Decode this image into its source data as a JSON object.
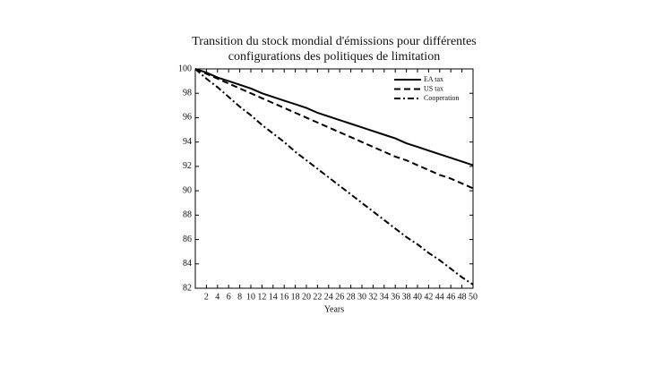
{
  "chart_data": {
    "type": "line",
    "title": [
      "Transition du stock mondial d'émissions pour différentes",
      "configurations des politiques de limitation"
    ],
    "x_label": "Years",
    "x": [
      0,
      2,
      4,
      6,
      8,
      10,
      12,
      14,
      16,
      18,
      20,
      22,
      24,
      26,
      28,
      30,
      32,
      34,
      36,
      38,
      40,
      42,
      44,
      46,
      48,
      50
    ],
    "series": [
      {
        "name": "EA tax",
        "color": "#000000",
        "dash": "solid",
        "values": [
          100,
          99.7,
          99.3,
          99.0,
          98.7,
          98.4,
          98.0,
          97.7,
          97.4,
          97.1,
          96.8,
          96.4,
          96.1,
          95.8,
          95.5,
          95.2,
          94.9,
          94.6,
          94.3,
          93.9,
          93.6,
          93.3,
          93.0,
          92.7,
          92.4,
          92.1
        ]
      },
      {
        "name": "US tax",
        "color": "#000000",
        "dash": "dashed",
        "values": [
          100,
          99.6,
          99.2,
          98.8,
          98.4,
          98.0,
          97.6,
          97.2,
          96.8,
          96.4,
          96.0,
          95.6,
          95.2,
          94.8,
          94.4,
          94.0,
          93.6,
          93.2,
          92.8,
          92.5,
          92.1,
          91.7,
          91.3,
          91.0,
          90.6,
          90.2
        ]
      },
      {
        "name": "Cooperation",
        "color": "#000000",
        "dash": "dashdot",
        "values": [
          100,
          99.2,
          98.5,
          97.7,
          96.9,
          96.2,
          95.4,
          94.7,
          94.0,
          93.2,
          92.5,
          91.8,
          91.1,
          90.4,
          89.7,
          89.0,
          88.3,
          87.6,
          86.9,
          86.2,
          85.6,
          84.9,
          84.3,
          83.6,
          82.9,
          82.3
        ]
      }
    ],
    "xlim": [
      0,
      50
    ],
    "xticks": [
      2,
      4,
      6,
      8,
      10,
      12,
      14,
      16,
      18,
      20,
      22,
      24,
      26,
      28,
      30,
      32,
      34,
      36,
      38,
      40,
      42,
      44,
      46,
      48,
      50
    ],
    "ylim": [
      82,
      100
    ],
    "yticks": [
      82,
      84,
      86,
      88,
      90,
      92,
      94,
      96,
      98,
      100
    ],
    "legend": "upper right",
    "grid": false
  }
}
